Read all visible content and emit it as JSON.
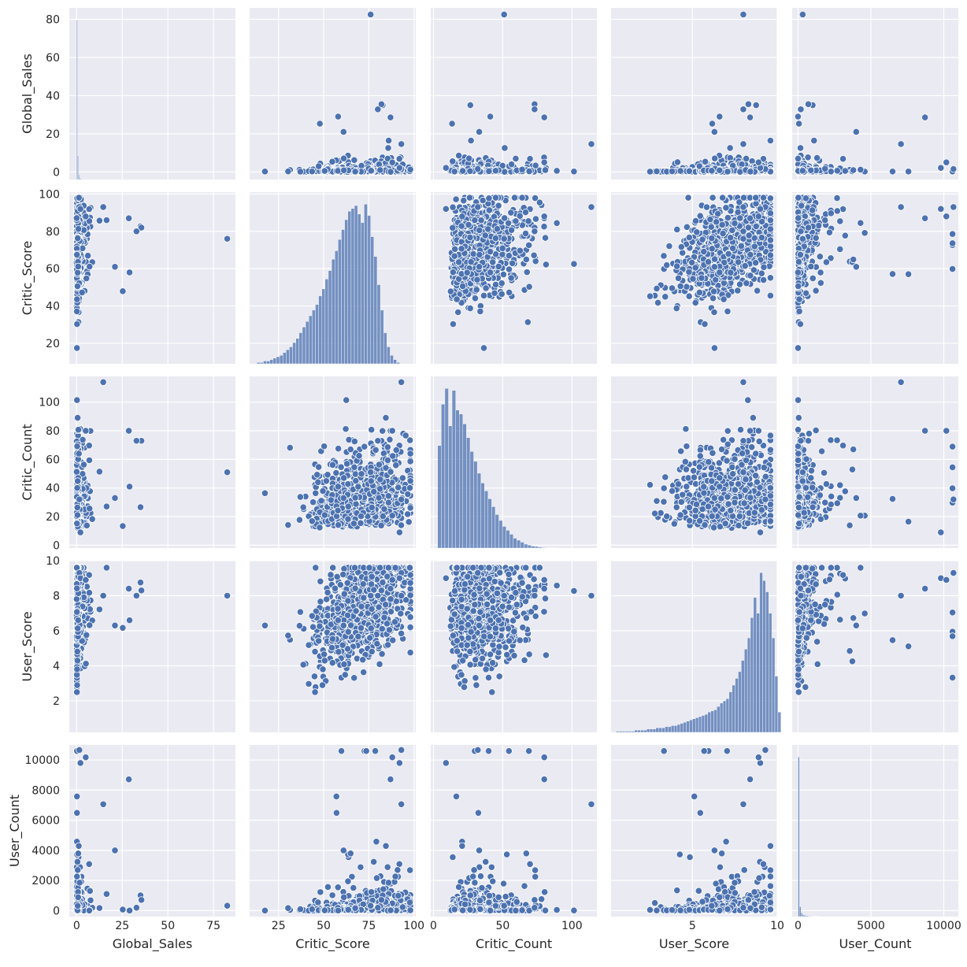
{
  "chart_data": {
    "type": "scatter",
    "kind": "pairplot",
    "style": {
      "background": "#eaeaf2",
      "grid_color": "#ffffff",
      "marker_color": "#4c72b0",
      "marker_edge": "#ffffff",
      "grid": true
    },
    "variables": [
      {
        "name": "Global_Sales",
        "lim": [
          -4,
          87
        ],
        "ticks": [
          0,
          25,
          50,
          75
        ],
        "ytick_labels": [
          0,
          20,
          40,
          60,
          80
        ],
        "ylim": [
          -4,
          86
        ]
      },
      {
        "name": "Critic_Score",
        "lim": [
          9,
          101
        ],
        "ticks": [
          25,
          50,
          75,
          100
        ],
        "ytick_labels": [
          20,
          40,
          60,
          80,
          100
        ]
      },
      {
        "name": "Critic_Count",
        "lim": [
          -2,
          118
        ],
        "ticks": [
          0,
          50,
          100
        ],
        "ytick_labels": [
          0,
          20,
          40,
          60,
          80,
          100
        ]
      },
      {
        "name": "User_Score",
        "lim": [
          0.2,
          10.0
        ],
        "ticks": [
          5,
          10
        ],
        "ytick_labels": [
          2,
          4,
          6,
          8,
          10
        ]
      },
      {
        "name": "User_Count",
        "lim": [
          -400,
          11000
        ],
        "ticks": [
          0,
          5000,
          10000
        ],
        "ytick_labels": [
          0,
          2000,
          4000,
          6000,
          8000,
          10000
        ]
      }
    ],
    "diagonal_histograms": [
      {
        "variable": "Global_Sales",
        "bin_start": 0,
        "bin_width": 0.5,
        "counts": [
          40,
          6,
          1.2,
          0.4,
          0.2
        ]
      },
      {
        "variable": "Critic_Score",
        "bin_start": 13,
        "bin_width": 1.8,
        "counts": [
          0.1,
          0.1,
          0.2,
          0.2,
          0.3,
          0.4,
          0.5,
          0.6,
          0.8,
          1.0,
          1.2,
          1.5,
          1.8,
          2.2,
          2.6,
          3.0,
          3.4,
          3.8,
          4.2,
          4.8,
          5.3,
          6.0,
          6.6,
          7.4,
          8.0,
          8.8,
          9.5,
          10.2,
          10.8,
          11.0,
          11.2,
          10.6,
          10.0,
          11.3,
          10.5,
          9.0,
          7.6,
          5.6,
          3.8,
          2.2,
          1.2,
          0.6,
          0.3,
          0.1,
          0.0,
          0.0,
          0.0
        ]
      },
      {
        "variable": "Critic_Count",
        "bin_start": 3,
        "bin_width": 2.6,
        "counts": [
          5.2,
          7.3,
          8.1,
          6.2,
          8.0,
          7.0,
          6.8,
          6.3,
          5.6,
          4.9,
          4.4,
          3.8,
          3.3,
          2.9,
          2.5,
          2.1,
          1.7,
          1.4,
          1.1,
          0.9,
          0.7,
          0.5,
          0.4,
          0.3,
          0.2,
          0.15,
          0.1,
          0.08,
          0.05,
          0.03,
          0.02,
          0.01,
          0.01,
          0.0
        ]
      },
      {
        "variable": "User_Score",
        "bin_start": 0.5,
        "bin_width": 0.18,
        "counts": [
          0.1,
          0.1,
          0.1,
          0.1,
          0.1,
          0.1,
          0.2,
          0.2,
          0.2,
          0.2,
          0.3,
          0.3,
          0.3,
          0.4,
          0.4,
          0.4,
          0.5,
          0.5,
          0.6,
          0.6,
          0.7,
          0.8,
          0.9,
          1.0,
          1.1,
          1.2,
          1.3,
          1.4,
          1.5,
          1.6,
          1.8,
          1.9,
          2.0,
          2.3,
          2.6,
          2.8,
          3.0,
          3.6,
          4.2,
          4.8,
          5.4,
          6.4,
          7.4,
          8.4,
          10.2,
          12.0,
          10.6,
          14.2,
          13.5,
          12.5,
          10.6,
          8.4,
          5.0,
          1.8
        ]
      },
      {
        "variable": "User_Count",
        "bin_start": 4,
        "bin_width": 100,
        "counts": [
          100,
          6.2,
          2.4,
          1.2,
          0.9,
          0.6,
          0.5,
          0.4,
          0.3,
          0.3,
          0.2,
          0.2,
          0.2,
          0.1,
          0.1
        ]
      }
    ]
  }
}
